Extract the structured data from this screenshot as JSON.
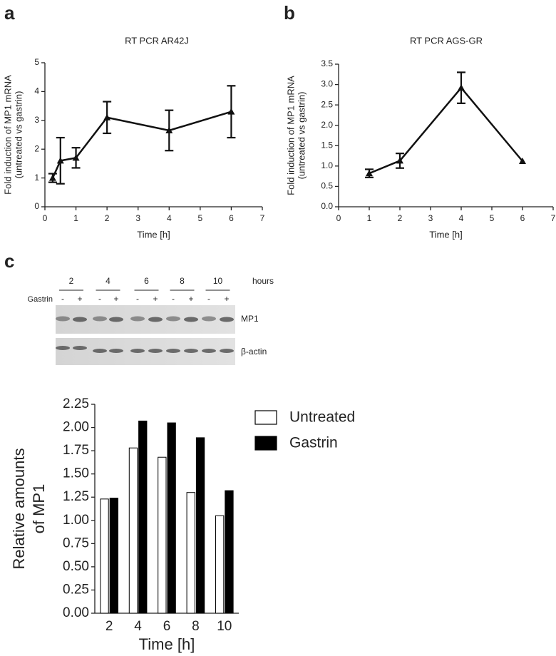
{
  "panels": [
    "a",
    "b",
    "c"
  ],
  "chart_data": [
    {
      "type": "line",
      "title": "RT PCR AR42J",
      "xlabel": "Time [h]",
      "ylabel": [
        "Fold induction of MP1 mRNA",
        "(untreated vs gastrin)"
      ],
      "x": [
        0.25,
        0.5,
        1,
        2,
        4,
        6
      ],
      "values": [
        1.0,
        1.6,
        1.7,
        3.1,
        2.65,
        3.3
      ],
      "errors": [
        0.15,
        0.8,
        0.35,
        0.55,
        0.7,
        0.9
      ],
      "color": "#111111",
      "xlim": [
        0,
        7
      ],
      "xticks": [
        0,
        1,
        2,
        3,
        4,
        5,
        6,
        7
      ],
      "ylim": [
        0,
        5
      ],
      "yticks": [
        0,
        1,
        2,
        3,
        4,
        5
      ]
    },
    {
      "type": "line",
      "title": "RT PCR AGS-GR",
      "xlabel": "Time [h]",
      "ylabel": [
        "Fold induction of MP1 mRNA",
        "(untreated vs gastrin)"
      ],
      "x": [
        1,
        2,
        4,
        6
      ],
      "values": [
        0.82,
        1.13,
        2.92,
        1.12
      ],
      "errors": [
        0.1,
        0.18,
        0.38,
        0
      ],
      "color": "#111111",
      "xlim": [
        0,
        7
      ],
      "xticks": [
        0,
        1,
        2,
        3,
        4,
        5,
        6,
        7
      ],
      "ylim": [
        0,
        3.5
      ],
      "yticks": [
        {
          "value": 0,
          "label": "0.0"
        },
        {
          "value": 0.5,
          "label": "0.5"
        },
        {
          "value": 1,
          "label": "1.0"
        },
        {
          "value": 1.5,
          "label": "1.5"
        },
        {
          "value": 2,
          "label": "2.0"
        },
        {
          "value": 2.5,
          "label": "2.5"
        },
        {
          "value": 3,
          "label": "3.0"
        },
        {
          "value": 3.5,
          "label": "3.5"
        }
      ]
    },
    {
      "type": "bar",
      "xlabel": "Time [h]",
      "ylabel": [
        "Relative amounts",
        "of MP1"
      ],
      "categories": [
        "2",
        "4",
        "6",
        "8",
        "10"
      ],
      "series": [
        {
          "name": "Untreated",
          "color": "#ffffff",
          "values": [
            1.23,
            1.78,
            1.68,
            1.3,
            1.05
          ]
        },
        {
          "name": "Gastrin",
          "color": "#000000",
          "values": [
            1.24,
            2.07,
            2.05,
            1.89,
            1.32
          ]
        }
      ],
      "ylim": [
        0,
        2.25
      ],
      "yticks": [
        {
          "value": 0,
          "label": "0.00"
        },
        {
          "value": 0.25,
          "label": "0.25"
        },
        {
          "value": 0.5,
          "label": "0.50"
        },
        {
          "value": 0.75,
          "label": "0.75"
        },
        {
          "value": 1,
          "label": "1.00"
        },
        {
          "value": 1.25,
          "label": "1.25"
        },
        {
          "value": 1.5,
          "label": "1.50"
        },
        {
          "value": 1.75,
          "label": "1.75"
        },
        {
          "value": 2,
          "label": "2.00"
        },
        {
          "value": 2.25,
          "label": "2.25"
        }
      ]
    }
  ],
  "blot": {
    "hours": [
      "2",
      "4",
      "6",
      "8",
      "10"
    ],
    "hours_label": "hours",
    "treatment": "Gastrin",
    "lanes": [
      "-",
      "+",
      "-",
      "+",
      "-",
      "+",
      "-",
      "+",
      "-",
      "+"
    ],
    "rows": [
      "MP1",
      "β-actin"
    ]
  }
}
